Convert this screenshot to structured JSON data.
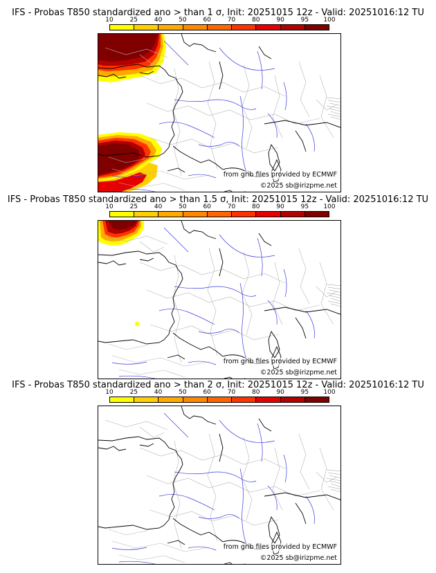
{
  "colorbar": {
    "ticks": [
      "10",
      "25",
      "40",
      "50",
      "60",
      "70",
      "80",
      "90",
      "95",
      "100"
    ],
    "colors": [
      "#ffff00",
      "#ffd000",
      "#ffaa00",
      "#ff8800",
      "#ff6600",
      "#ff3300",
      "#e60000",
      "#b30000",
      "#800000"
    ]
  },
  "credits": {
    "grib": "from grib files provided by ECMWF",
    "copyright": "©2025 sb@irizpme.net"
  },
  "panels": [
    {
      "title": "IFS - Probas T850  standardized ano > than 1 σ, Init: 20251015 12z - Valid: 20251016:12 TU",
      "anomaly_level": "1 σ"
    },
    {
      "title": "IFS - Probas T850  standardized ano > than 1.5 σ, Init: 20251015 12z - Valid: 20251016:12 TU",
      "anomaly_level": "1.5 σ"
    },
    {
      "title": "IFS - Probas T850  standardized ano > than 2 σ, Init: 20251015 12z - Valid: 20251016:12 TU",
      "anomaly_level": "2 σ"
    }
  ]
}
